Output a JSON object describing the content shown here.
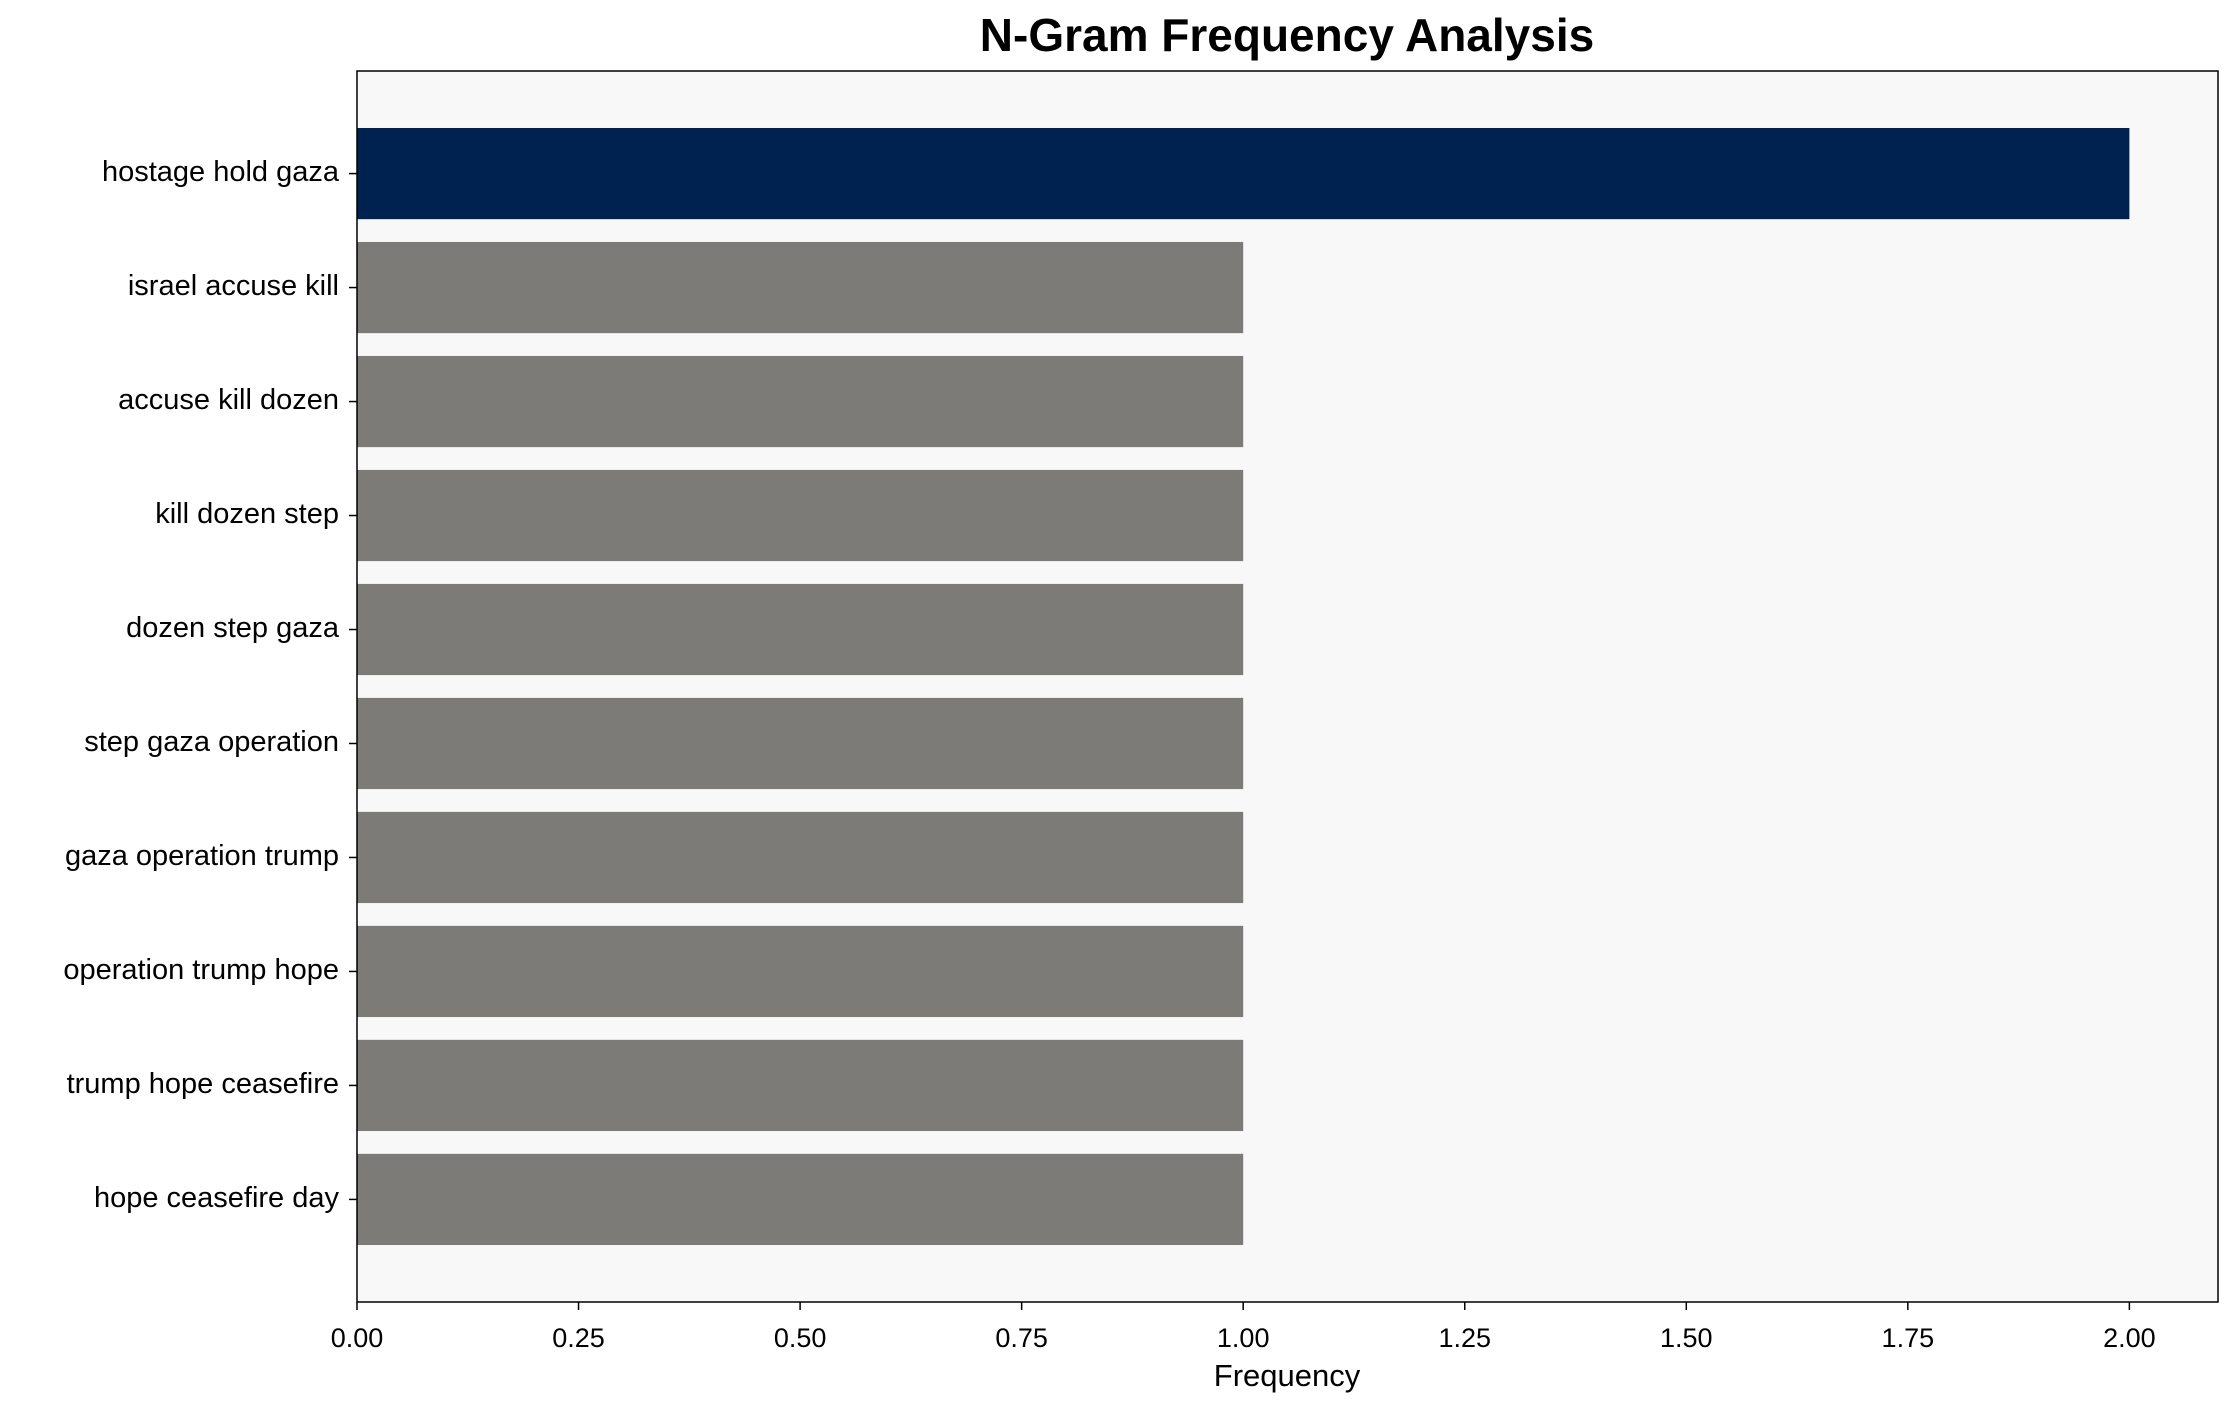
{
  "chart_data": {
    "type": "barh",
    "title": "N-Gram Frequency Analysis",
    "x_label": "Frequency",
    "categories": [
      "hostage hold gaza",
      "israel accuse kill",
      "accuse kill dozen",
      "kill dozen step",
      "dozen step gaza",
      "step gaza operation",
      "gaza operation trump",
      "operation trump hope",
      "trump hope ceasefire",
      "hope ceasefire day"
    ],
    "values": [
      2,
      1,
      1,
      1,
      1,
      1,
      1,
      1,
      1,
      1
    ],
    "colors": [
      "#002251",
      "#7c7b78",
      "#7c7b78",
      "#7c7b78",
      "#7c7b78",
      "#7c7b78",
      "#7c7b78",
      "#7c7b78",
      "#7c7b78",
      "#7c7b78"
    ],
    "xlim": [
      0,
      2.1
    ],
    "xticks": [
      {
        "value": 0,
        "label": "0.00"
      },
      {
        "value": 0.25,
        "label": "0.25"
      },
      {
        "value": 0.5,
        "label": "0.50"
      },
      {
        "value": 0.75,
        "label": "0.75"
      },
      {
        "value": 1,
        "label": "1.00"
      },
      {
        "value": 1.25,
        "label": "1.25"
      },
      {
        "value": 1.5,
        "label": "1.50"
      },
      {
        "value": 1.75,
        "label": "1.75"
      },
      {
        "value": 2,
        "label": "2.00"
      }
    ],
    "background": "#f8f8f8"
  }
}
